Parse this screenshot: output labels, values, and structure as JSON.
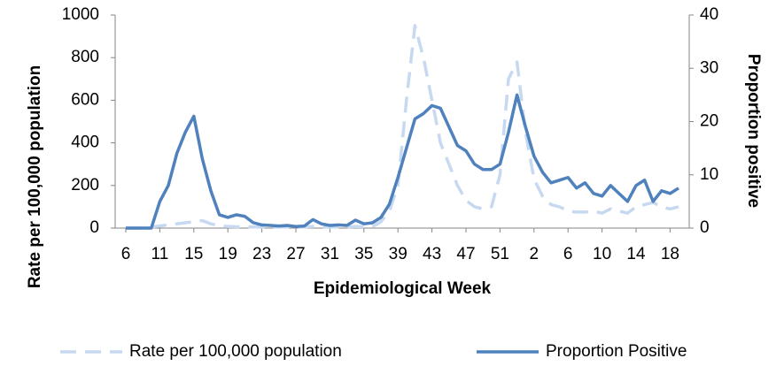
{
  "chart_data": {
    "type": "line",
    "x_label": "Epidemiological Week",
    "y_label": "Rate per 100,000 population",
    "y2_label": "Proportion positive",
    "categories": [
      "6",
      null,
      null,
      null,
      "11",
      null,
      null,
      null,
      "15",
      null,
      null,
      null,
      "19",
      null,
      null,
      null,
      "23",
      null,
      null,
      null,
      "27",
      null,
      null,
      null,
      "31",
      null,
      null,
      null,
      "35",
      null,
      null,
      null,
      "39",
      null,
      null,
      null,
      "43",
      null,
      null,
      null,
      "47",
      null,
      null,
      null,
      "51",
      null,
      null,
      null,
      "2",
      null,
      null,
      null,
      "6",
      null,
      null,
      null,
      "10",
      null,
      null,
      null,
      "14",
      null,
      null,
      null,
      "18",
      null
    ],
    "ylim": [
      0,
      1000
    ],
    "yticks": [
      0,
      200,
      400,
      600,
      800,
      1000
    ],
    "y2lim": [
      0,
      40
    ],
    "y2ticks": [
      0,
      10,
      20,
      30,
      40
    ],
    "series": [
      {
        "name": "Rate per 100,000 population",
        "color": "#c6d9f1",
        "dashed": true,
        "values": [
          0,
          0,
          0,
          5,
          10,
          15,
          20,
          25,
          30,
          35,
          20,
          10,
          8,
          6,
          5,
          5,
          5,
          5,
          5,
          5,
          5,
          5,
          8,
          6,
          5,
          5,
          5,
          8,
          6,
          6,
          30,
          80,
          200,
          600,
          950,
          800,
          600,
          400,
          300,
          200,
          130,
          100,
          90,
          100,
          250,
          700,
          780,
          450,
          230,
          150,
          110,
          100,
          80,
          75,
          75,
          80,
          70,
          90,
          80,
          70,
          100,
          110,
          120,
          100,
          90,
          100
        ]
      },
      {
        "name": "Proportion Positive",
        "color": "#4f81bd",
        "axis": "y2",
        "values": [
          0,
          0,
          0,
          0,
          5,
          8,
          14,
          18,
          21,
          13,
          7,
          2.5,
          2,
          2.5,
          2.2,
          1,
          0.6,
          0.5,
          0.4,
          0.5,
          0.3,
          0.4,
          1.6,
          0.8,
          0.5,
          0.6,
          0.5,
          1.5,
          0.8,
          1,
          2,
          4.5,
          9.5,
          15,
          20.5,
          21.5,
          23,
          22.5,
          19,
          15.5,
          14.5,
          12,
          11,
          11,
          12,
          18,
          25,
          19,
          13.5,
          10.5,
          8.5,
          9,
          9.5,
          7.5,
          8.5,
          6.5,
          6,
          8,
          6.5,
          5,
          8,
          9,
          5,
          7,
          6.5,
          7.5
        ]
      }
    ]
  }
}
